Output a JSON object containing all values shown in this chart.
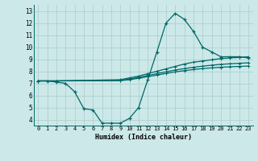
{
  "xlabel": "Humidex (Indice chaleur)",
  "bg_color": "#cce8e8",
  "grid_color": "#aacccc",
  "line_color": "#006868",
  "xlim": [
    -0.5,
    23.5
  ],
  "ylim": [
    3.5,
    13.5
  ],
  "xticks": [
    0,
    1,
    2,
    3,
    4,
    5,
    6,
    7,
    8,
    9,
    10,
    11,
    12,
    13,
    14,
    15,
    16,
    17,
    18,
    19,
    20,
    21,
    22,
    23
  ],
  "yticks": [
    4,
    5,
    6,
    7,
    8,
    9,
    10,
    11,
    12,
    13
  ],
  "line1_x": [
    0,
    1,
    2,
    3,
    4,
    5,
    6,
    7,
    8,
    9,
    10,
    11,
    12,
    13,
    14,
    15,
    16,
    17,
    18,
    19,
    20,
    21,
    22,
    23
  ],
  "line1_y": [
    7.2,
    7.2,
    7.1,
    7.0,
    6.3,
    4.9,
    4.8,
    3.7,
    3.7,
    3.7,
    4.1,
    5.0,
    7.3,
    9.6,
    12.0,
    12.8,
    12.3,
    11.3,
    10.0,
    9.6,
    9.2,
    9.2,
    9.2,
    9.1
  ],
  "line2_x": [
    0,
    2,
    9,
    10,
    11,
    12,
    13,
    14,
    15,
    16,
    17,
    18,
    19,
    20,
    21,
    22,
    23
  ],
  "line2_y": [
    7.2,
    7.2,
    7.3,
    7.45,
    7.6,
    7.8,
    8.0,
    8.2,
    8.4,
    8.6,
    8.75,
    8.85,
    8.95,
    9.05,
    9.1,
    9.15,
    9.2
  ],
  "line3_x": [
    0,
    2,
    9,
    10,
    11,
    12,
    13,
    14,
    15,
    16,
    17,
    18,
    19,
    20,
    21,
    22,
    23
  ],
  "line3_y": [
    7.2,
    7.2,
    7.25,
    7.35,
    7.5,
    7.65,
    7.8,
    7.95,
    8.1,
    8.22,
    8.33,
    8.42,
    8.5,
    8.57,
    8.62,
    8.66,
    8.7
  ],
  "line4_x": [
    0,
    2,
    9,
    10,
    11,
    12,
    13,
    14,
    15,
    16,
    17,
    18,
    19,
    20,
    21,
    22,
    23
  ],
  "line4_y": [
    7.2,
    7.2,
    7.22,
    7.3,
    7.42,
    7.55,
    7.68,
    7.82,
    7.95,
    8.05,
    8.14,
    8.22,
    8.28,
    8.33,
    8.37,
    8.4,
    8.43
  ]
}
